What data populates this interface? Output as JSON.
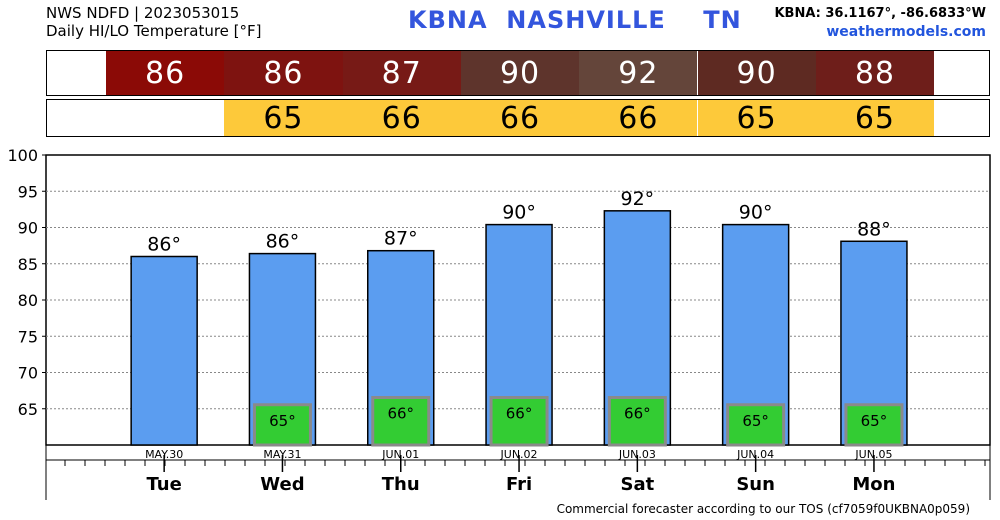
{
  "header": {
    "line1": "NWS NDFD | 2023053015",
    "line2": "Daily HI/LO Temperature [°F]",
    "station": "KBNA",
    "city": "NASHVILLE",
    "state": "TN",
    "coords": "KBNA: 36.1167°, -86.6833°W",
    "site": "weathermodels.com"
  },
  "high_row": {
    "cells": [
      {
        "text": "86",
        "color": "#8b0a06"
      },
      {
        "text": "86",
        "color": "#7e1310"
      },
      {
        "text": "87",
        "color": "#771a16"
      },
      {
        "text": "90",
        "color": "#5e342c"
      },
      {
        "text": "92",
        "color": "#64453a"
      },
      {
        "text": "90",
        "color": "#5e2a22"
      },
      {
        "text": "88",
        "color": "#6e1e1a"
      }
    ]
  },
  "low_row": {
    "color": "#fdc93a",
    "cells": [
      {
        "text": "65"
      },
      {
        "text": "66"
      },
      {
        "text": "66"
      },
      {
        "text": "66"
      },
      {
        "text": "65"
      },
      {
        "text": "65"
      }
    ]
  },
  "chart_data": {
    "type": "bar",
    "categories": [
      "Tue",
      "Wed",
      "Thu",
      "Fri",
      "Sat",
      "Sun",
      "Mon"
    ],
    "dates": [
      "MAY.30",
      "MAY.31",
      "JUN.01",
      "JUN.02",
      "JUN.03",
      "JUN.04",
      "JUN.05"
    ],
    "series": [
      {
        "values": [
          86,
          86.4,
          86.8,
          90.4,
          92.3,
          90.4,
          88.1
        ],
        "labels": [
          "86°",
          "86°",
          "87°",
          "90°",
          "92°",
          "90°",
          "88°"
        ],
        "color": "#5b9df0"
      },
      {
        "values": [
          null,
          65,
          66,
          66,
          66,
          65,
          65
        ],
        "labels": [
          null,
          "65°",
          "66°",
          "66°",
          "66°",
          "65°",
          "65°"
        ],
        "color": "#33cc33"
      }
    ],
    "yticks": [
      65,
      70,
      75,
      80,
      85,
      90,
      95,
      100
    ],
    "ylim": [
      60,
      100
    ],
    "grid": true
  },
  "footer": "Commercial forecaster according to our TOS (cf7059f0UKBNA0p059)"
}
